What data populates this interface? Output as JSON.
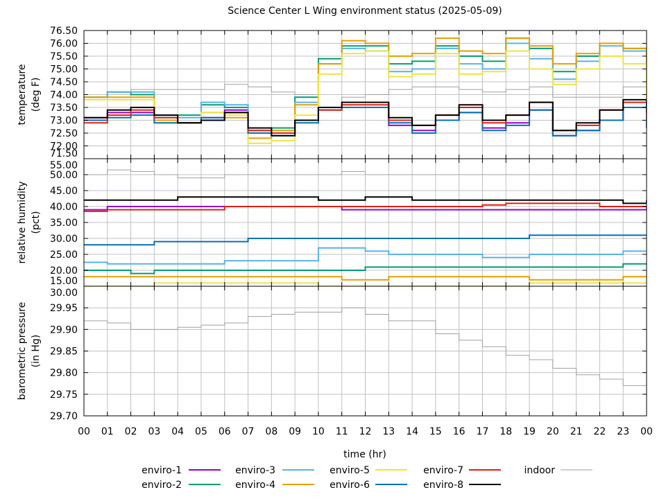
{
  "chart_data": {
    "type": "line",
    "title": "Science Center L Wing environment status (2025-05-09)",
    "xlabel": "time (hr)",
    "x": [
      0,
      1,
      2,
      3,
      4,
      5,
      6,
      7,
      8,
      9,
      10,
      11,
      12,
      13,
      14,
      15,
      16,
      17,
      18,
      19,
      20,
      21,
      22,
      23,
      24
    ],
    "xticks": [
      "00",
      "01",
      "02",
      "03",
      "04",
      "05",
      "06",
      "07",
      "08",
      "09",
      "10",
      "11",
      "12",
      "13",
      "14",
      "15",
      "16",
      "17",
      "18",
      "19",
      "20",
      "21",
      "22",
      "23",
      "00"
    ],
    "xlim": [
      0,
      24
    ],
    "grid": true,
    "legend_position": "bottom",
    "series_styles": [
      {
        "name": "enviro-1",
        "color": "#9400d3"
      },
      {
        "name": "enviro-2",
        "color": "#009e73"
      },
      {
        "name": "enviro-3",
        "color": "#56b4e9"
      },
      {
        "name": "enviro-4",
        "color": "#e69f00"
      },
      {
        "name": "enviro-5",
        "color": "#f0e442"
      },
      {
        "name": "enviro-6",
        "color": "#0072b2"
      },
      {
        "name": "enviro-7",
        "color": "#e51e10"
      },
      {
        "name": "enviro-8",
        "color": "#000000"
      },
      {
        "name": "indoor",
        "color": "#a0a0a0"
      }
    ],
    "panels": [
      {
        "ylabel": [
          "temperature",
          "(deg F)"
        ],
        "ylim": [
          71.5,
          76.5
        ],
        "yticks": [
          "71.50",
          "72.00",
          "72.50",
          "73.00",
          "73.50",
          "74.00",
          "74.50",
          "75.00",
          "75.50",
          "76.00",
          "76.50"
        ],
        "series": [
          {
            "name": "enviro-1",
            "values": [
              73.1,
              73.3,
              73.3,
              73.0,
              72.9,
              73.1,
              73.4,
              72.5,
              72.5,
              73.0,
              73.5,
              73.5,
              73.5,
              72.8,
              72.6,
              73.0,
              73.3,
              72.7,
              72.9,
              73.4,
              72.4,
              72.6,
              73.0,
              73.5,
              72.7
            ]
          },
          {
            "name": "enviro-2",
            "values": [
              73.9,
              74.1,
              74.0,
              73.2,
              73.2,
              73.6,
              73.5,
              72.6,
              72.7,
              73.9,
              75.4,
              75.9,
              75.9,
              75.2,
              75.3,
              75.9,
              75.5,
              75.3,
              76.2,
              75.8,
              74.9,
              75.5,
              76.0,
              75.8,
              74.0
            ]
          },
          {
            "name": "enviro-3",
            "values": [
              73.9,
              74.1,
              74.1,
              73.1,
              73.1,
              73.7,
              73.6,
              72.5,
              72.5,
              73.7,
              75.2,
              75.8,
              75.7,
              74.9,
              75.0,
              75.8,
              75.2,
              75.0,
              76.0,
              75.4,
              74.6,
              75.3,
              75.9,
              75.7,
              73.6
            ]
          },
          {
            "name": "enviro-4",
            "values": [
              73.9,
              73.9,
              73.9,
              73.0,
              72.9,
              73.3,
              73.1,
              72.3,
              72.6,
              73.6,
              75.2,
              76.1,
              76.0,
              75.5,
              75.6,
              76.2,
              75.7,
              75.6,
              76.2,
              75.9,
              75.2,
              75.6,
              76.0,
              75.8,
              74.0
            ]
          },
          {
            "name": "enviro-5",
            "values": [
              73.8,
              73.8,
              73.8,
              72.9,
              72.9,
              73.3,
              73.2,
              72.1,
              72.2,
              73.2,
              74.8,
              75.6,
              75.7,
              74.7,
              74.8,
              75.6,
              74.8,
              74.9,
              75.7,
              75.0,
              74.4,
              75.0,
              75.5,
              75.2,
              73.3
            ]
          },
          {
            "name": "enviro-6",
            "values": [
              73.0,
              73.1,
              73.2,
              72.9,
              72.9,
              73.1,
              73.3,
              72.5,
              72.4,
              72.9,
              73.4,
              73.5,
              73.5,
              72.9,
              72.5,
              73.0,
              73.3,
              72.6,
              72.8,
              73.4,
              72.4,
              72.6,
              73.0,
              73.5,
              72.8
            ]
          },
          {
            "name": "enviro-7",
            "values": [
              72.9,
              73.2,
              73.4,
              73.1,
              72.9,
              73.0,
              73.3,
              72.6,
              72.5,
              73.0,
              73.4,
              73.6,
              73.6,
              73.0,
              72.8,
              73.2,
              73.5,
              72.9,
              73.2,
              73.7,
              72.6,
              72.8,
              73.4,
              73.7,
              73.1
            ]
          },
          {
            "name": "enviro-8",
            "values": [
              73.1,
              73.4,
              73.5,
              73.2,
              72.9,
              73.0,
              73.3,
              72.7,
              72.4,
              73.0,
              73.5,
              73.7,
              73.7,
              73.1,
              72.8,
              73.2,
              73.6,
              73.0,
              73.2,
              73.7,
              72.6,
              72.9,
              73.4,
              73.8,
              73.3
            ]
          },
          {
            "name": "indoor",
            "values": [
              73.9,
              74.1,
              74.2,
              74.2,
              74.2,
              74.2,
              74.4,
              74.3,
              74.1,
              74.0,
              73.5,
              73.9,
              74.0,
              74.2,
              74.3,
              74.3,
              74.2,
              74.1,
              74.2,
              74.3,
              73.9,
              73.9,
              73.9,
              74.3,
              74.4
            ]
          }
        ]
      },
      {
        "ylabel": [
          "relative humidity",
          "(pct)"
        ],
        "ylim": [
          15,
          55
        ],
        "yticks": [
          "15.00",
          "20.00",
          "25.00",
          "30.00",
          "35.00",
          "40.00",
          "45.00",
          "50.00",
          "55.00"
        ],
        "series": [
          {
            "name": "enviro-1",
            "values": [
              39,
              40,
              40,
              40,
              40,
              40,
              40,
              40,
              40,
              40,
              40,
              39,
              39,
              39,
              39,
              39,
              39,
              39,
              39,
              39,
              39,
              39,
              39,
              39,
              40
            ]
          },
          {
            "name": "enviro-2",
            "values": [
              20,
              20,
              19,
              20,
              20,
              20,
              20,
              20,
              20,
              20,
              20,
              20,
              21,
              21,
              21,
              21,
              21,
              21,
              21,
              21,
              21,
              21,
              21,
              22,
              22
            ]
          },
          {
            "name": "enviro-3",
            "values": [
              22.5,
              22,
              22,
              22,
              22,
              22,
              23,
              23,
              23,
              23,
              27,
              27,
              26,
              25,
              25,
              25,
              25,
              24,
              24,
              25,
              25,
              25,
              25,
              26,
              26
            ]
          },
          {
            "name": "enviro-4",
            "values": [
              18,
              18,
              18,
              18,
              18,
              18,
              18,
              18,
              18,
              18,
              18,
              17,
              17,
              18,
              18,
              18,
              18,
              18,
              18,
              17,
              17,
              17,
              17,
              18,
              18
            ]
          },
          {
            "name": "enviro-5",
            "values": [
              15,
              15,
              15,
              16,
              16,
              16,
              16,
              16,
              16,
              16,
              15,
              15,
              15,
              15,
              15,
              15,
              15,
              15,
              15,
              16,
              16,
              16,
              16,
              16,
              16
            ]
          },
          {
            "name": "enviro-6",
            "values": [
              28,
              28,
              28,
              29,
              29,
              29,
              29,
              30,
              30,
              30,
              30,
              30,
              30,
              30,
              30,
              30,
              30,
              30,
              30,
              31,
              31,
              31,
              31,
              31,
              31
            ]
          },
          {
            "name": "enviro-7",
            "values": [
              38.5,
              39,
              39,
              39,
              39,
              39,
              40,
              40,
              40,
              40,
              40,
              40,
              40,
              40,
              40,
              40,
              40,
              40.5,
              41,
              41,
              41,
              41,
              40,
              40,
              40
            ]
          },
          {
            "name": "enviro-8",
            "values": [
              42,
              42,
              42,
              42,
              43,
              43,
              43,
              43,
              43,
              43,
              42,
              42,
              43,
              43,
              42,
              42,
              42,
              42,
              42,
              42,
              42,
              42,
              42,
              41,
              42
            ]
          },
          {
            "name": "indoor",
            "values": [
              50,
              51.5,
              51,
              50,
              49,
              49,
              50,
              50,
              50,
              50,
              50,
              51,
              50,
              50,
              50,
              50,
              50,
              50,
              50,
              50,
              50,
              50,
              50,
              50,
              50
            ]
          }
        ]
      },
      {
        "ylabel": [
          "barometric pressure",
          "(in Hg)"
        ],
        "ylim": [
          29.7,
          30.0
        ],
        "yticks": [
          "29.70",
          "29.75",
          "29.80",
          "29.85",
          "29.90",
          "29.95",
          "30.00"
        ],
        "series": [
          {
            "name": "indoor",
            "values": [
              29.92,
              29.915,
              29.9,
              29.9,
              29.905,
              29.91,
              29.915,
              29.93,
              29.935,
              29.94,
              29.94,
              29.95,
              29.935,
              29.92,
              29.92,
              29.89,
              29.875,
              29.86,
              29.84,
              29.83,
              29.81,
              29.795,
              29.785,
              29.77,
              29.745
            ]
          }
        ]
      }
    ]
  }
}
